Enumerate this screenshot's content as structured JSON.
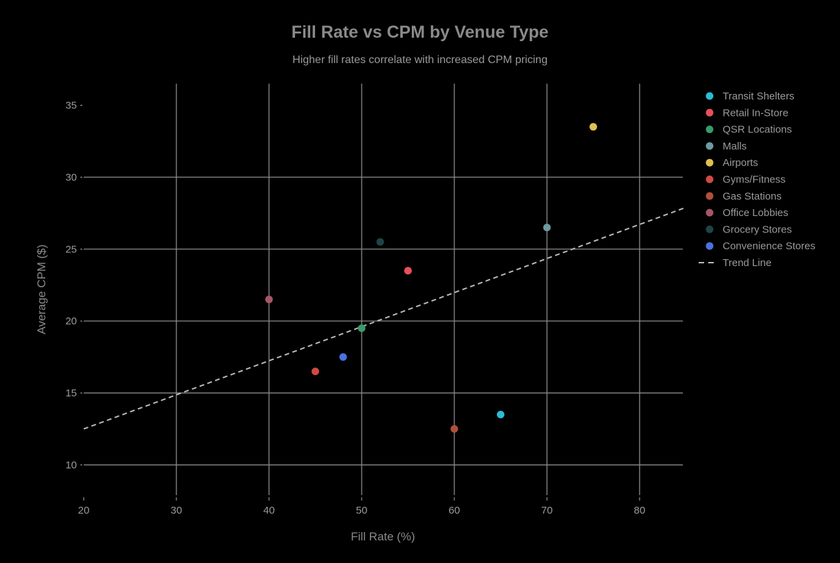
{
  "chart_data": {
    "type": "scatter",
    "title": "Fill Rate vs CPM by Venue Type",
    "subtitle": "Higher fill rates correlate with increased CPM pricing",
    "xlabel": "Fill Rate (%)",
    "ylabel": "Average CPM ($)",
    "xlim": [
      20,
      85
    ],
    "ylim": [
      7.9,
      36.5
    ],
    "xticks": [
      20,
      30,
      40,
      50,
      60,
      70,
      80
    ],
    "yticks": [
      10,
      15,
      20,
      25,
      30,
      35
    ],
    "grid": true,
    "legend_position": "right",
    "background": "#000000",
    "series": [
      {
        "name": "Transit Shelters",
        "color": "#2bbcd4",
        "x": [
          65
        ],
        "y": [
          13.5
        ]
      },
      {
        "name": "Retail In-Store",
        "color": "#e8505b",
        "x": [
          55
        ],
        "y": [
          23.5
        ]
      },
      {
        "name": "QSR Locations",
        "color": "#3a9a6a",
        "x": [
          50
        ],
        "y": [
          19.5
        ]
      },
      {
        "name": "Malls",
        "color": "#6e9aa0",
        "x": [
          70
        ],
        "y": [
          26.5
        ]
      },
      {
        "name": "Airports",
        "color": "#e0c050",
        "x": [
          75
        ],
        "y": [
          33.5
        ]
      },
      {
        "name": "Gyms/Fitness",
        "color": "#d04a45",
        "x": [
          45
        ],
        "y": [
          16.5
        ]
      },
      {
        "name": "Gas Stations",
        "color": "#b0503a",
        "x": [
          60
        ],
        "y": [
          12.5
        ]
      },
      {
        "name": "Office Lobbies",
        "color": "#a85565",
        "x": [
          40
        ],
        "y": [
          21.5
        ]
      },
      {
        "name": "Grocery Stores",
        "color": "#1e4448",
        "x": [
          52
        ],
        "y": [
          25.5
        ]
      },
      {
        "name": "Convenience Stores",
        "color": "#4a72e0",
        "x": [
          48
        ],
        "y": [
          17.5
        ]
      }
    ],
    "trend_line": {
      "name": "Trend Line",
      "color": "#bbbbbb",
      "style": "dashed",
      "x": [
        20,
        85
      ],
      "y": [
        12.5,
        27.9
      ]
    }
  }
}
